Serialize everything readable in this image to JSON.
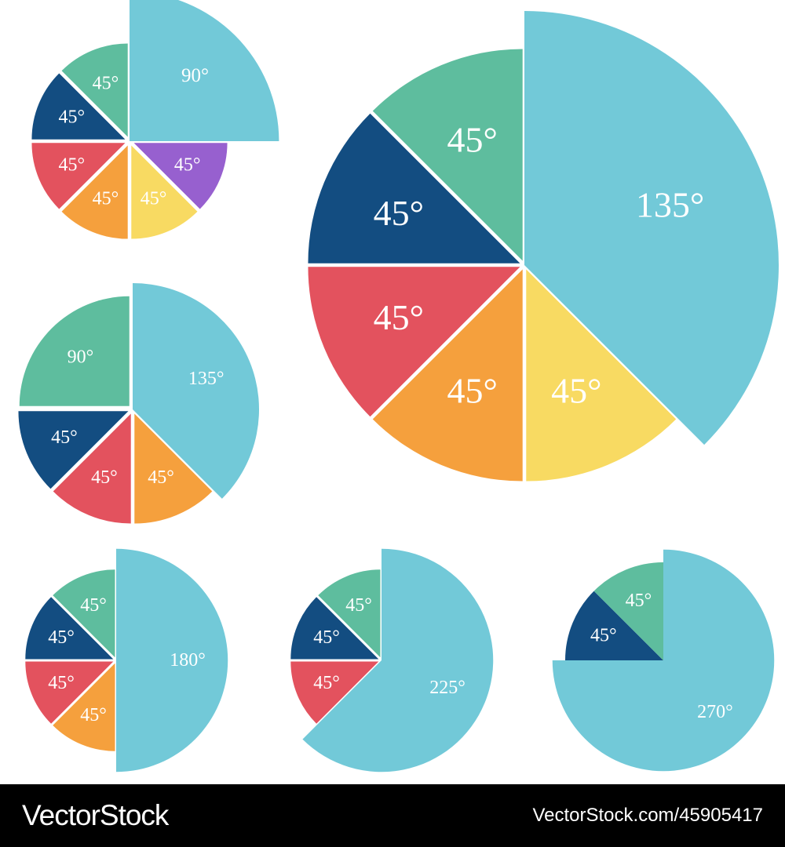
{
  "colors": {
    "cyan": "#72C9D8",
    "green": "#5EBD9E",
    "navy": "#134D81",
    "red": "#E3525E",
    "orange": "#F5A03D",
    "yellow": "#F8DA62",
    "purple": "#9760CF"
  },
  "chart_data": [
    {
      "type": "pie",
      "slices": [
        {
          "label": "90°",
          "value": 90,
          "color": "cyan",
          "exploded": true
        },
        {
          "label": "45°",
          "value": 45,
          "color": "purple"
        },
        {
          "label": "45°",
          "value": 45,
          "color": "yellow"
        },
        {
          "label": "45°",
          "value": 45,
          "color": "orange"
        },
        {
          "label": "45°",
          "value": 45,
          "color": "red"
        },
        {
          "label": "45°",
          "value": 45,
          "color": "navy"
        },
        {
          "label": "45°",
          "value": 45,
          "color": "green"
        }
      ]
    },
    {
      "type": "pie",
      "slices": [
        {
          "label": "135°",
          "value": 135,
          "color": "cyan",
          "exploded": true
        },
        {
          "label": "45°",
          "value": 45,
          "color": "yellow"
        },
        {
          "label": "45°",
          "value": 45,
          "color": "orange"
        },
        {
          "label": "45°",
          "value": 45,
          "color": "red"
        },
        {
          "label": "45°",
          "value": 45,
          "color": "navy"
        },
        {
          "label": "45°",
          "value": 45,
          "color": "green"
        }
      ]
    },
    {
      "type": "pie",
      "slices": [
        {
          "label": "135°",
          "value": 135,
          "color": "cyan",
          "exploded": true
        },
        {
          "label": "45°",
          "value": 45,
          "color": "orange"
        },
        {
          "label": "45°",
          "value": 45,
          "color": "red"
        },
        {
          "label": "45°",
          "value": 45,
          "color": "navy"
        },
        {
          "label": "90°",
          "value": 90,
          "color": "green"
        }
      ]
    },
    {
      "type": "pie",
      "slices": [
        {
          "label": "180°",
          "value": 180,
          "color": "cyan",
          "exploded": true
        },
        {
          "label": "45°",
          "value": 45,
          "color": "orange"
        },
        {
          "label": "45°",
          "value": 45,
          "color": "red"
        },
        {
          "label": "45°",
          "value": 45,
          "color": "navy"
        },
        {
          "label": "45°",
          "value": 45,
          "color": "green"
        }
      ]
    },
    {
      "type": "pie",
      "slices": [
        {
          "label": "225°",
          "value": 225,
          "color": "cyan",
          "exploded": true
        },
        {
          "label": "45°",
          "value": 45,
          "color": "red"
        },
        {
          "label": "45°",
          "value": 45,
          "color": "navy"
        },
        {
          "label": "45°",
          "value": 45,
          "color": "green"
        }
      ]
    },
    {
      "type": "pie",
      "slices": [
        {
          "label": "270°",
          "value": 270,
          "color": "cyan",
          "exploded": true
        },
        {
          "label": "45°",
          "value": 45,
          "color": "navy"
        },
        {
          "label": "45°",
          "value": 45,
          "color": "green"
        }
      ]
    }
  ],
  "footer": {
    "brand": "VectorStock",
    "credit": "VectorStock.com/45905417"
  }
}
